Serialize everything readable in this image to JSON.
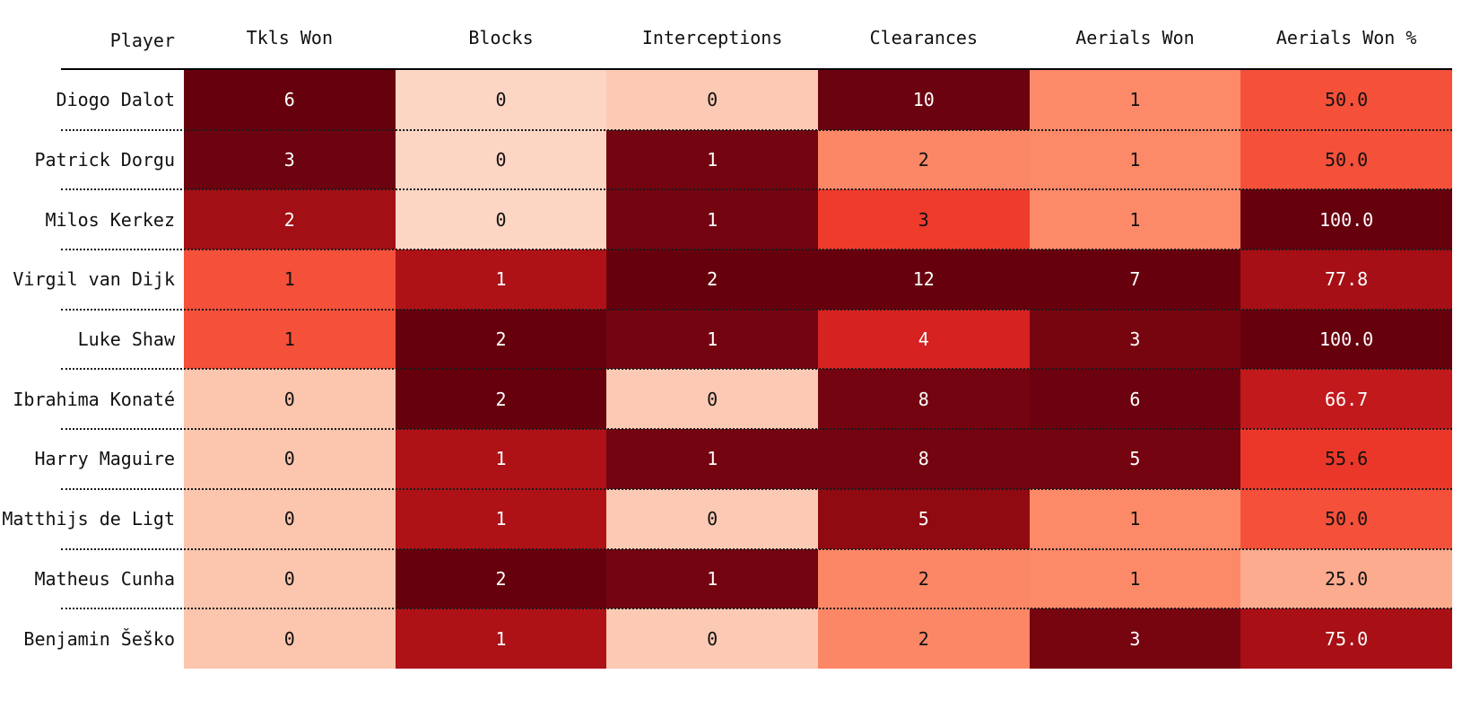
{
  "table": {
    "columns": [
      "Player",
      "Tkls Won",
      "Blocks",
      "Interceptions",
      "Clearances",
      "Aerials Won",
      "Aerials Won %"
    ],
    "column_keys": [
      "tkls-won",
      "blocks",
      "interceptions",
      "clearances",
      "aerials-won",
      "aerials-won-pct"
    ],
    "rows": [
      {
        "player": "Diogo Dalot",
        "cells": [
          {
            "v": "6",
            "bg": "#67000d",
            "fg": "#ffffff"
          },
          {
            "v": "0",
            "bg": "#fdd5c3",
            "fg": "#111111"
          },
          {
            "v": "0",
            "bg": "#fccab4",
            "fg": "#111111"
          },
          {
            "v": "10",
            "bg": "#6b0210",
            "fg": "#ffffff"
          },
          {
            "v": "1",
            "bg": "#fc8968",
            "fg": "#111111"
          },
          {
            "v": "50.0",
            "bg": "#f4503a",
            "fg": "#111111"
          }
        ]
      },
      {
        "player": "Patrick Dorgu",
        "cells": [
          {
            "v": "3",
            "bg": "#6d0310",
            "fg": "#ffffff"
          },
          {
            "v": "0",
            "bg": "#fdd5c3",
            "fg": "#111111"
          },
          {
            "v": "1",
            "bg": "#730410",
            "fg": "#ffffff"
          },
          {
            "v": "2",
            "bg": "#fc8766",
            "fg": "#111111"
          },
          {
            "v": "1",
            "bg": "#fc8968",
            "fg": "#111111"
          },
          {
            "v": "50.0",
            "bg": "#f4503a",
            "fg": "#111111"
          }
        ]
      },
      {
        "player": "Milos Kerkez",
        "cells": [
          {
            "v": "2",
            "bg": "#a21015",
            "fg": "#ffffff"
          },
          {
            "v": "0",
            "bg": "#fdd5c3",
            "fg": "#111111"
          },
          {
            "v": "1",
            "bg": "#730410",
            "fg": "#ffffff"
          },
          {
            "v": "3",
            "bg": "#ee3b2c",
            "fg": "#111111"
          },
          {
            "v": "1",
            "bg": "#fc8968",
            "fg": "#111111"
          },
          {
            "v": "100.0",
            "bg": "#67000d",
            "fg": "#ffffff"
          }
        ]
      },
      {
        "player": "Virgil van Dijk",
        "cells": [
          {
            "v": "1",
            "bg": "#f4503a",
            "fg": "#111111"
          },
          {
            "v": "1",
            "bg": "#ae1217",
            "fg": "#ffffff"
          },
          {
            "v": "2",
            "bg": "#67000d",
            "fg": "#ffffff"
          },
          {
            "v": "12",
            "bg": "#67000d",
            "fg": "#ffffff"
          },
          {
            "v": "7",
            "bg": "#67000d",
            "fg": "#ffffff"
          },
          {
            "v": "77.8",
            "bg": "#a50f15",
            "fg": "#ffffff"
          }
        ]
      },
      {
        "player": "Luke Shaw",
        "cells": [
          {
            "v": "1",
            "bg": "#f4503a",
            "fg": "#111111"
          },
          {
            "v": "2",
            "bg": "#67000d",
            "fg": "#ffffff"
          },
          {
            "v": "1",
            "bg": "#730410",
            "fg": "#ffffff"
          },
          {
            "v": "4",
            "bg": "#d62221",
            "fg": "#ffffff"
          },
          {
            "v": "3",
            "bg": "#770510",
            "fg": "#ffffff"
          },
          {
            "v": "100.0",
            "bg": "#67000d",
            "fg": "#ffffff"
          }
        ]
      },
      {
        "player": "Ibrahima Konaté",
        "cells": [
          {
            "v": "0",
            "bg": "#fcc5ad",
            "fg": "#111111"
          },
          {
            "v": "2",
            "bg": "#67000d",
            "fg": "#ffffff"
          },
          {
            "v": "0",
            "bg": "#fccab4",
            "fg": "#111111"
          },
          {
            "v": "8",
            "bg": "#730410",
            "fg": "#ffffff"
          },
          {
            "v": "6",
            "bg": "#6c020f",
            "fg": "#ffffff"
          },
          {
            "v": "66.7",
            "bg": "#c2191d",
            "fg": "#ffffff"
          }
        ]
      },
      {
        "player": "Harry Maguire",
        "cells": [
          {
            "v": "0",
            "bg": "#fcc5ad",
            "fg": "#111111"
          },
          {
            "v": "1",
            "bg": "#ae1217",
            "fg": "#ffffff"
          },
          {
            "v": "1",
            "bg": "#730410",
            "fg": "#ffffff"
          },
          {
            "v": "8",
            "bg": "#730410",
            "fg": "#ffffff"
          },
          {
            "v": "5",
            "bg": "#730410",
            "fg": "#ffffff"
          },
          {
            "v": "55.6",
            "bg": "#eb372a",
            "fg": "#111111"
          }
        ]
      },
      {
        "player": "Matthijs de Ligt",
        "cells": [
          {
            "v": "0",
            "bg": "#fcc5ad",
            "fg": "#111111"
          },
          {
            "v": "1",
            "bg": "#ae1217",
            "fg": "#ffffff"
          },
          {
            "v": "0",
            "bg": "#fccab4",
            "fg": "#111111"
          },
          {
            "v": "5",
            "bg": "#900a12",
            "fg": "#ffffff"
          },
          {
            "v": "1",
            "bg": "#fc8968",
            "fg": "#111111"
          },
          {
            "v": "50.0",
            "bg": "#f4503a",
            "fg": "#111111"
          }
        ]
      },
      {
        "player": "Matheus Cunha",
        "cells": [
          {
            "v": "0",
            "bg": "#fcc5ad",
            "fg": "#111111"
          },
          {
            "v": "2",
            "bg": "#67000d",
            "fg": "#ffffff"
          },
          {
            "v": "1",
            "bg": "#730410",
            "fg": "#ffffff"
          },
          {
            "v": "2",
            "bg": "#fc8766",
            "fg": "#111111"
          },
          {
            "v": "1",
            "bg": "#fc8968",
            "fg": "#111111"
          },
          {
            "v": "25.0",
            "bg": "#fcab8f",
            "fg": "#111111"
          }
        ]
      },
      {
        "player": "Benjamin Šeško",
        "cells": [
          {
            "v": "0",
            "bg": "#fcc5ad",
            "fg": "#111111"
          },
          {
            "v": "1",
            "bg": "#ae1217",
            "fg": "#ffffff"
          },
          {
            "v": "0",
            "bg": "#fccab4",
            "fg": "#111111"
          },
          {
            "v": "2",
            "bg": "#fc8766",
            "fg": "#111111"
          },
          {
            "v": "3",
            "bg": "#770510",
            "fg": "#ffffff"
          },
          {
            "v": "75.0",
            "bg": "#a81016",
            "fg": "#ffffff"
          }
        ]
      }
    ]
  },
  "chart_data": {
    "type": "heatmap",
    "title": "",
    "row_label": "Player",
    "rows": [
      "Diogo Dalot",
      "Patrick Dorgu",
      "Milos Kerkez",
      "Virgil van Dijk",
      "Luke Shaw",
      "Ibrahima Konaté",
      "Harry Maguire",
      "Matthijs de Ligt",
      "Matheus Cunha",
      "Benjamin Šeško"
    ],
    "columns": [
      "Tkls Won",
      "Blocks",
      "Interceptions",
      "Clearances",
      "Aerials Won",
      "Aerials Won %"
    ],
    "values": [
      [
        6,
        0,
        0,
        10,
        1,
        50.0
      ],
      [
        3,
        0,
        1,
        2,
        1,
        50.0
      ],
      [
        2,
        0,
        1,
        3,
        1,
        100.0
      ],
      [
        1,
        1,
        2,
        12,
        7,
        77.8
      ],
      [
        1,
        2,
        1,
        4,
        3,
        100.0
      ],
      [
        0,
        2,
        0,
        8,
        6,
        66.7
      ],
      [
        0,
        1,
        1,
        8,
        5,
        55.6
      ],
      [
        0,
        1,
        0,
        5,
        1,
        50.0
      ],
      [
        0,
        2,
        1,
        2,
        1,
        25.0
      ],
      [
        0,
        1,
        0,
        2,
        3,
        75.0
      ]
    ],
    "colormap": "Reds",
    "shading": "per-column, darker red = higher value; text turns white on dark cells",
    "grid": "dotted horizontal separators between rows, solid rule under header",
    "legend": "none",
    "colors": {
      "darkest": "#67000d",
      "lightest": "#fdd5c3",
      "rule": "#000000",
      "background": "#ffffff"
    }
  }
}
